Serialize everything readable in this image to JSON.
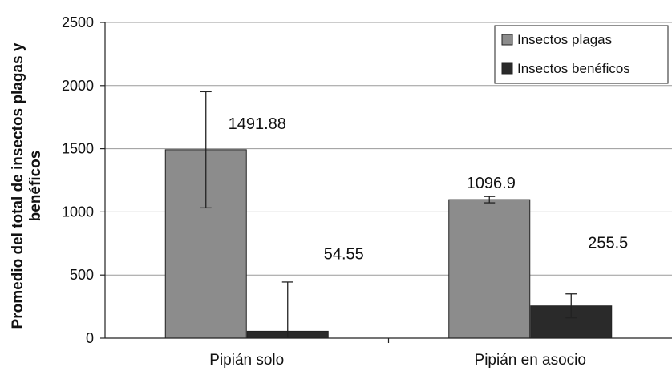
{
  "chart_data": {
    "type": "bar",
    "categories": [
      "Pipián solo",
      "Pipián en asocio"
    ],
    "series": [
      {
        "name": "Insectos plagas",
        "values": [
          1491.88,
          1096.9
        ],
        "value_labels": [
          "1491.88",
          "1096.9"
        ],
        "error": [
          460,
          25
        ],
        "color": "#8c8c8c"
      },
      {
        "name": "Insectos benéficos",
        "values": [
          54.55,
          255.5
        ],
        "value_labels": [
          "54.55",
          "255.5"
        ],
        "error": [
          390,
          95
        ],
        "color": "#2a2a2a"
      }
    ],
    "ylabel_lines": [
      "Promedio del total de insectos plagas y",
      "benéficos"
    ],
    "xlabel": "",
    "ylim": [
      0,
      2500
    ],
    "yticks": [
      0,
      500,
      1000,
      1500,
      2000,
      2500
    ],
    "grid": true,
    "legend_position": "top-right"
  }
}
